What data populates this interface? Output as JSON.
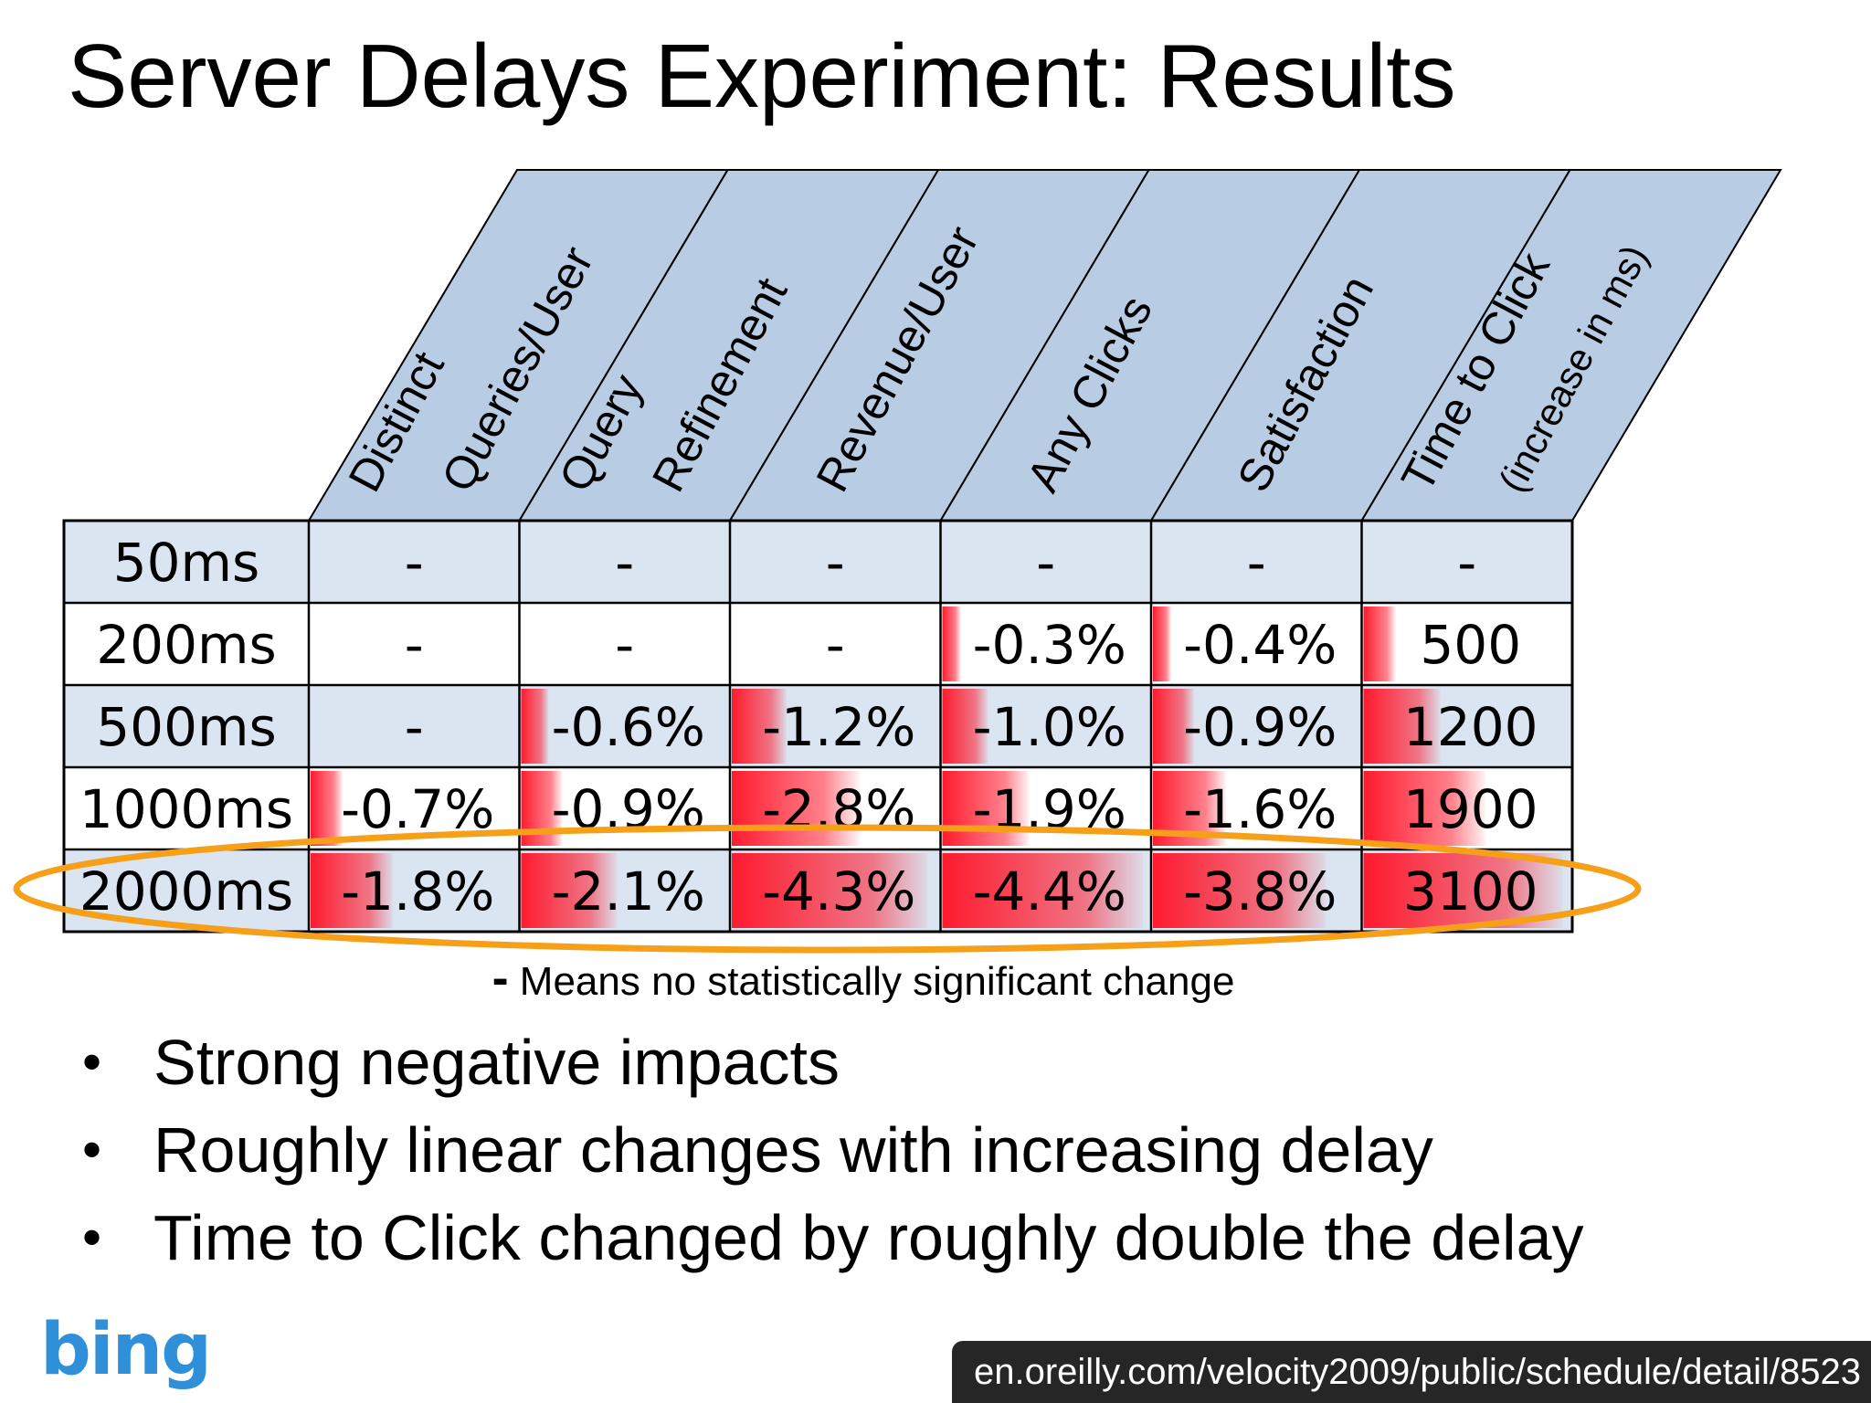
{
  "slide": {
    "title": "Server Delays Experiment: Results",
    "legend_note_dash": "-",
    "legend_note_text": " Means no statistically significant change",
    "bullets": [
      "Strong negative impacts",
      "Roughly linear changes with increasing delay",
      "Time to Click changed by roughly double the delay"
    ],
    "logo_text": "bing",
    "source": "en.oreilly.com/velocity2009/public/schedule/detail/8523"
  },
  "colors": {
    "header_fill": "#b8cce4",
    "row_alt_fill": "#dbe5f1",
    "row_fill": "#ffffff",
    "bar_color": "#ff1a2e",
    "highlight": "#f6a01a",
    "logo": "#2f8fd8",
    "border": "#000000"
  },
  "chart_data": {
    "type": "table",
    "title": "Server Delays Experiment: Results",
    "columns": [
      {
        "lines": [
          "Distinct",
          "Queries/User"
        ]
      },
      {
        "lines": [
          "Query",
          "Refinement"
        ]
      },
      {
        "lines": [
          "Revenue/User"
        ]
      },
      {
        "lines": [
          "Any Clicks"
        ]
      },
      {
        "lines": [
          "Satisfaction"
        ]
      },
      {
        "lines": [
          "Time to Click",
          "(increase in ms)"
        ]
      }
    ],
    "rows": [
      {
        "label": "50ms",
        "cells": [
          "-",
          "-",
          "-",
          "-",
          "-",
          "-"
        ],
        "bars": [
          0,
          0,
          0,
          0,
          0,
          0
        ]
      },
      {
        "label": "200ms",
        "cells": [
          "-",
          "-",
          "-",
          "-0.3%",
          "-0.4%",
          "500"
        ],
        "bars": [
          0,
          0,
          0,
          0.3,
          0.4,
          500
        ]
      },
      {
        "label": "500ms",
        "cells": [
          "-",
          "-0.6%",
          "-1.2%",
          "-1.0%",
          "-0.9%",
          "1200"
        ],
        "bars": [
          0,
          0.6,
          1.2,
          1.0,
          0.9,
          1200
        ]
      },
      {
        "label": "1000ms",
        "cells": [
          "-0.7%",
          "-0.9%",
          "-2.8%",
          "-1.9%",
          "-1.6%",
          "1900"
        ],
        "bars": [
          0.7,
          0.9,
          2.8,
          1.9,
          1.6,
          1900
        ]
      },
      {
        "label": "2000ms",
        "cells": [
          "-1.8%",
          "-2.1%",
          "-4.3%",
          "-4.4%",
          "-3.8%",
          "3100"
        ],
        "bars": [
          1.8,
          2.1,
          4.3,
          4.4,
          3.8,
          3100
        ]
      }
    ],
    "bar_scale": {
      "percent_max": 4.5,
      "ms_max": 3200
    },
    "highlighted_row": "2000ms"
  }
}
